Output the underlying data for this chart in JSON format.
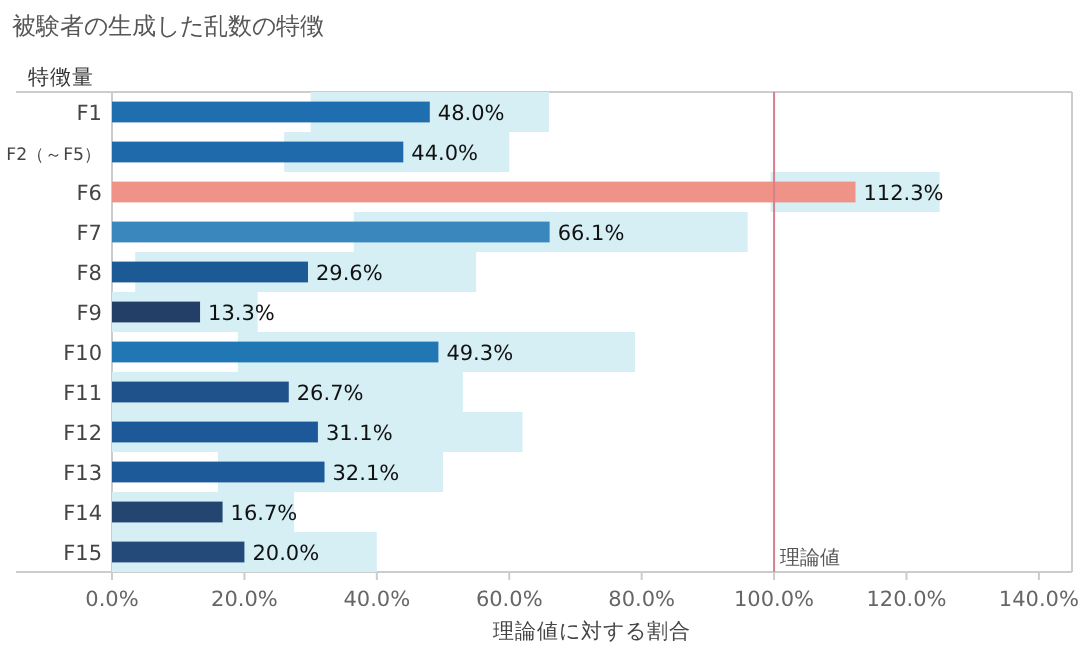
{
  "chart_data": {
    "type": "bar",
    "orientation": "horizontal",
    "title": "被験者の生成した乱数の特徴",
    "ylabel": "特徴量",
    "xlabel": "理論値に対する割合",
    "categories": [
      "F1",
      "F2（～F5）",
      "F6",
      "F7",
      "F8",
      "F9",
      "F10",
      "F11",
      "F12",
      "F13",
      "F14",
      "F15"
    ],
    "series": [
      {
        "color": "#d6eff5",
        "base": [
          30,
          26,
          99.5,
          36.5,
          3.5,
          0,
          19,
          0,
          0,
          16,
          0,
          0
        ],
        "values": [
          36,
          34,
          25.5,
          59.5,
          51.5,
          22,
          60,
          53,
          62,
          34,
          27.5,
          40
        ]
      },
      {
        "values": [
          48.0,
          44.0,
          112.3,
          66.1,
          29.6,
          13.3,
          49.3,
          26.7,
          31.1,
          32.1,
          16.7,
          20.0
        ],
        "colors": [
          "#1f6fb0",
          "#1f6aaa",
          "#ef9288",
          "#3a87bd",
          "#1c5a96",
          "#233f68",
          "#2176b4",
          "#1f528a",
          "#1d5898",
          "#1d5a9a",
          "#244570",
          "#244a7a"
        ],
        "value_labels": [
          "48.0%",
          "44.0%",
          "112.3%",
          "66.1%",
          "29.6%",
          "13.3%",
          "49.3%",
          "26.7%",
          "31.1%",
          "32.1%",
          "16.7%",
          "20.0%"
        ]
      }
    ],
    "xlim": [
      0,
      145
    ],
    "xticks": [
      {
        "value": 0,
        "label": "0.0%"
      },
      {
        "value": 20,
        "label": "20.0%"
      },
      {
        "value": 40,
        "label": "40.0%"
      },
      {
        "value": 60,
        "label": "60.0%"
      },
      {
        "value": 80,
        "label": "80.0%"
      },
      {
        "value": 100,
        "label": "100.0%"
      },
      {
        "value": 120,
        "label": "120.0%"
      },
      {
        "value": 140,
        "label": "140.0%"
      }
    ],
    "ref_lines": [
      {
        "axis": "x",
        "value": 100,
        "label": "理論値",
        "color": "#d87f8a"
      }
    ],
    "grid": false
  }
}
